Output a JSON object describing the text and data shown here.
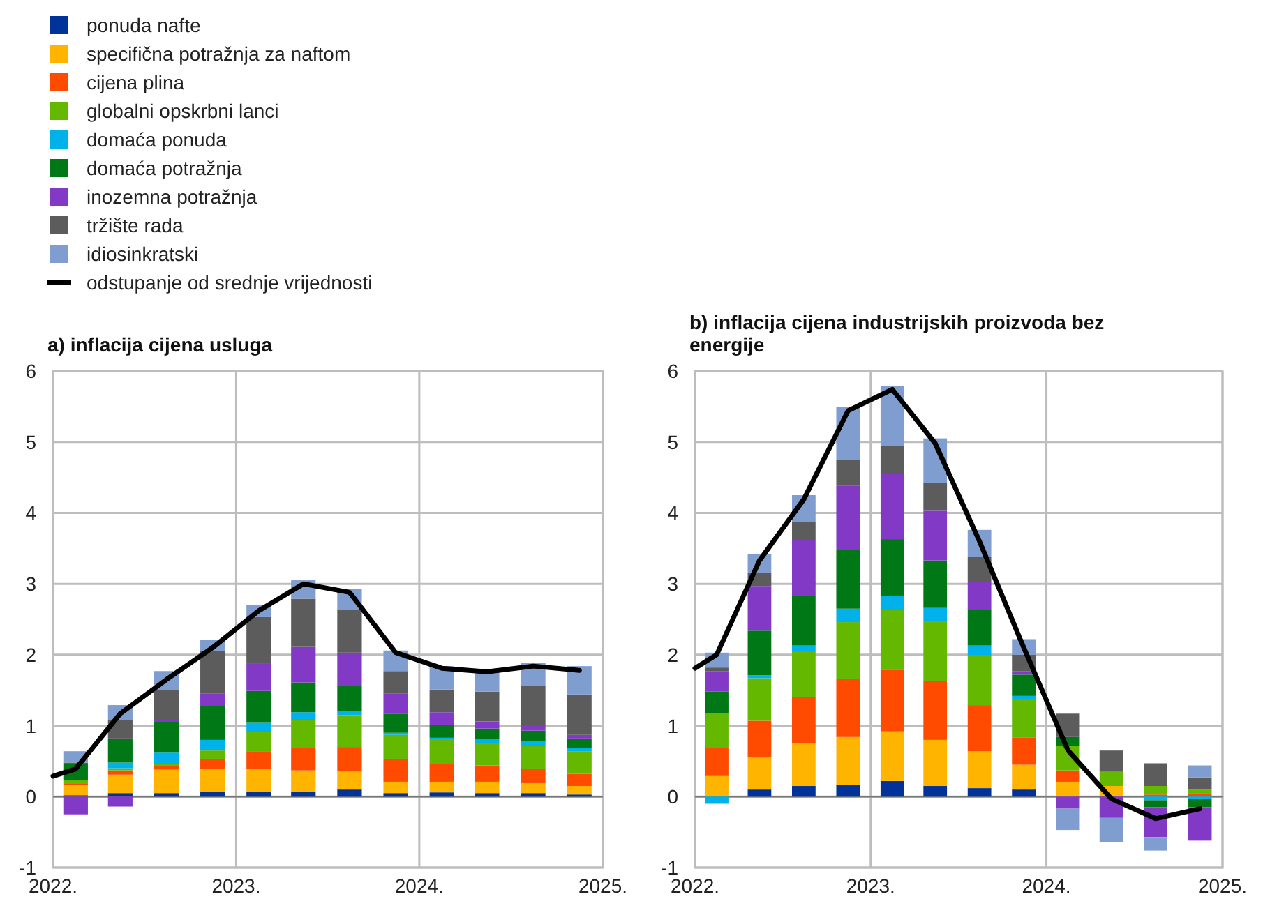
{
  "chart_data": [
    {
      "type": "bar",
      "title": "a) inflacija cijena usluga",
      "stacked": true,
      "grid": true,
      "legend": "top left",
      "x": [
        "2022-02-15",
        "2022-05-15",
        "2022-08-15",
        "2022-11-15",
        "2023-02-15",
        "2023-05-15",
        "2023-08-15",
        "2023-11-15",
        "2024-02-15",
        "2024-05-15",
        "2024-08-15",
        "2024-11-15"
      ],
      "xlim": [
        "2022-01-01",
        "2025-01-01"
      ],
      "xticks": [
        {
          "value": "2022-01-01",
          "label": "2022."
        },
        {
          "value": "2023-01-01",
          "label": "2023."
        },
        {
          "value": "2024-01-01",
          "label": "2024."
        },
        {
          "value": "2025-01-01",
          "label": "2025."
        }
      ],
      "ylim": [
        -1,
        6
      ],
      "yticks": [
        -1,
        0,
        1,
        2,
        3,
        4,
        5,
        6
      ],
      "series": [
        {
          "name": "ponuda nafte",
          "color": "#003299",
          "values": [
            0.02,
            0.05,
            0.05,
            0.07,
            0.07,
            0.07,
            0.1,
            0.05,
            0.06,
            0.05,
            0.05,
            0.03
          ]
        },
        {
          "name": "specifična potražnja za naftom",
          "color": "#ffb400",
          "values": [
            0.15,
            0.26,
            0.33,
            0.32,
            0.32,
            0.3,
            0.26,
            0.16,
            0.15,
            0.16,
            0.14,
            0.12
          ]
        },
        {
          "name": "cijena plina",
          "color": "#ff4b00",
          "values": [
            0.01,
            0.06,
            0.05,
            0.14,
            0.25,
            0.32,
            0.34,
            0.32,
            0.25,
            0.23,
            0.2,
            0.17
          ]
        },
        {
          "name": "globalni opskrbni lanci",
          "color": "#65b800",
          "values": [
            0.05,
            0.03,
            0.03,
            0.12,
            0.27,
            0.39,
            0.45,
            0.34,
            0.34,
            0.32,
            0.33,
            0.32
          ]
        },
        {
          "name": "domaća ponuda",
          "color": "#00b1ea",
          "values": [
            0,
            0.08,
            0.16,
            0.15,
            0.13,
            0.11,
            0.06,
            0.03,
            0.03,
            0.05,
            0.06,
            0.05
          ]
        },
        {
          "name": "domaća potražnja",
          "color": "#007816",
          "values": [
            0.23,
            0.34,
            0.43,
            0.48,
            0.45,
            0.42,
            0.35,
            0.27,
            0.18,
            0.15,
            0.15,
            0.13
          ]
        },
        {
          "name": "inozemna potražnja",
          "color": "#8139c6",
          "values": [
            -0.25,
            -0.14,
            0.03,
            0.17,
            0.39,
            0.5,
            0.47,
            0.28,
            0.18,
            0.1,
            0.08,
            0.05
          ]
        },
        {
          "name": "tržište rada",
          "color": "#5c5c5c",
          "values": [
            0.02,
            0.26,
            0.42,
            0.6,
            0.65,
            0.68,
            0.6,
            0.32,
            0.32,
            0.42,
            0.55,
            0.57
          ]
        },
        {
          "name": "idiosinkratski",
          "color": "#7f9dcf",
          "values": [
            0.16,
            0.21,
            0.27,
            0.16,
            0.17,
            0.26,
            0.3,
            0.29,
            0.33,
            0.3,
            0.33,
            0.4
          ]
        },
        {
          "name": "odstupanje od srednje vrijednosti",
          "type": "line",
          "color": "#000000",
          "x": [
            "2022-01-01",
            "2022-02-15",
            "2022-05-15",
            "2022-08-15",
            "2022-11-15",
            "2023-02-15",
            "2023-05-15",
            "2023-08-15",
            "2023-11-15",
            "2024-02-15",
            "2024-05-15",
            "2024-08-15",
            "2024-11-15"
          ],
          "values": [
            0.29,
            0.39,
            1.17,
            1.65,
            2.1,
            2.62,
            3.0,
            2.88,
            2.03,
            1.81,
            1.76,
            1.84,
            1.78
          ]
        }
      ]
    },
    {
      "type": "bar",
      "title": "b) inflacija cijena industrijskih proizvoda bez energije",
      "stacked": true,
      "grid": true,
      "x": [
        "2022-02-15",
        "2022-05-15",
        "2022-08-15",
        "2022-11-15",
        "2023-02-15",
        "2023-05-15",
        "2023-08-15",
        "2023-11-15",
        "2024-02-15",
        "2024-05-15",
        "2024-08-15",
        "2024-11-15"
      ],
      "xlim": [
        "2022-01-01",
        "2025-01-01"
      ],
      "xticks": [
        {
          "value": "2022-01-01",
          "label": "2022."
        },
        {
          "value": "2023-01-01",
          "label": "2023."
        },
        {
          "value": "2024-01-01",
          "label": "2024."
        },
        {
          "value": "2025-01-01",
          "label": "2025."
        }
      ],
      "ylim": [
        -1,
        6
      ],
      "yticks": [
        -1,
        0,
        1,
        2,
        3,
        4,
        5,
        6
      ],
      "series": [
        {
          "color": "#003299",
          "values": [
            0,
            0.1,
            0.15,
            0.17,
            0.22,
            0.15,
            0.12,
            0.1,
            0,
            0,
            0,
            0
          ]
        },
        {
          "color": "#ffb400",
          "values": [
            0.29,
            0.45,
            0.6,
            0.67,
            0.7,
            0.65,
            0.52,
            0.35,
            0.21,
            0.15,
            0,
            0
          ]
        },
        {
          "color": "#ff4b00",
          "values": [
            0.4,
            0.52,
            0.65,
            0.82,
            0.87,
            0.83,
            0.65,
            0.38,
            0.16,
            0,
            0.03,
            0.05
          ]
        },
        {
          "color": "#65b800",
          "values": [
            0.49,
            0.6,
            0.65,
            0.8,
            0.84,
            0.84,
            0.7,
            0.54,
            0.35,
            0.2,
            0.12,
            0.05
          ]
        },
        {
          "color": "#00b1ea",
          "values": [
            -0.1,
            0.04,
            0.08,
            0.19,
            0.2,
            0.19,
            0.14,
            0.05,
            0,
            0,
            -0.05,
            -0.03
          ]
        },
        {
          "color": "#007816",
          "values": [
            0.3,
            0.63,
            0.7,
            0.83,
            0.8,
            0.67,
            0.5,
            0.3,
            0.12,
            0,
            -0.1,
            -0.12
          ]
        },
        {
          "color": "#8139c6",
          "values": [
            0.29,
            0.63,
            0.79,
            0.9,
            0.92,
            0.7,
            0.4,
            0.05,
            -0.17,
            -0.3,
            -0.42,
            -0.47
          ]
        },
        {
          "color": "#5c5c5c",
          "values": [
            0.05,
            0.18,
            0.25,
            0.37,
            0.39,
            0.39,
            0.35,
            0.23,
            0.33,
            0.3,
            0.32,
            0.17
          ]
        },
        {
          "color": "#7f9dcf",
          "values": [
            0.21,
            0.27,
            0.38,
            0.74,
            0.85,
            0.63,
            0.38,
            0.22,
            -0.3,
            -0.34,
            -0.19,
            0.17
          ]
        },
        {
          "type": "line",
          "color": "#000000",
          "x": [
            "2022-01-01",
            "2022-02-15",
            "2022-05-15",
            "2022-08-15",
            "2022-11-15",
            "2023-02-15",
            "2023-05-15",
            "2023-08-15",
            "2023-11-15",
            "2024-02-15",
            "2024-05-15",
            "2024-08-15",
            "2024-11-15"
          ],
          "values": [
            1.81,
            2.0,
            3.33,
            4.19,
            5.44,
            5.74,
            4.98,
            3.6,
            2.1,
            0.65,
            -0.03,
            -0.31,
            -0.17
          ]
        }
      ]
    }
  ]
}
